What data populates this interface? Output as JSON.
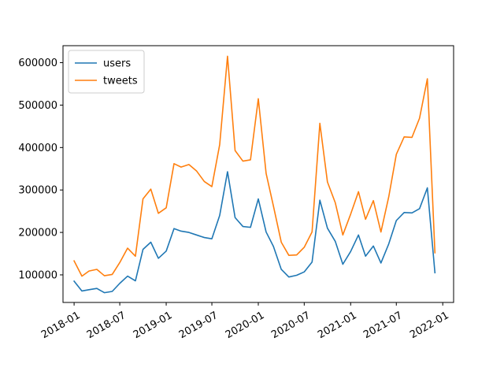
{
  "chart_data": {
    "type": "line",
    "title": "",
    "xlabel": "",
    "ylabel": "",
    "grid": false,
    "legend_position": "top-left",
    "x_dates": [
      "2018-01",
      "2018-02",
      "2018-03",
      "2018-04",
      "2018-05",
      "2018-06",
      "2018-07",
      "2018-08",
      "2018-09",
      "2018-10",
      "2018-11",
      "2018-12",
      "2019-01",
      "2019-02",
      "2019-03",
      "2019-04",
      "2019-05",
      "2019-06",
      "2019-07",
      "2019-08",
      "2019-09",
      "2019-10",
      "2019-11",
      "2019-12",
      "2020-01",
      "2020-02",
      "2020-03",
      "2020-04",
      "2020-05",
      "2020-06",
      "2020-07",
      "2020-08",
      "2020-09",
      "2020-10",
      "2020-11",
      "2020-12",
      "2021-01",
      "2021-02",
      "2021-03",
      "2021-04",
      "2021-05",
      "2021-06",
      "2021-07",
      "2021-08",
      "2021-09",
      "2021-10",
      "2021-11",
      "2021-12"
    ],
    "x_ticks": [
      "2018-01",
      "2018-07",
      "2019-01",
      "2019-07",
      "2020-01",
      "2020-07",
      "2021-01",
      "2021-07",
      "2022-01"
    ],
    "xlim": [
      "2017-11-18",
      "2022-02-13"
    ],
    "ylim": [
      35000,
      640000
    ],
    "y_ticks": [
      100000,
      200000,
      300000,
      400000,
      500000,
      600000
    ],
    "series": [
      {
        "name": "users",
        "color": "#1f77b4",
        "values": [
          85000,
          62000,
          65000,
          68000,
          58000,
          61000,
          80000,
          97000,
          86000,
          160000,
          177000,
          139000,
          156000,
          209000,
          203000,
          200000,
          194000,
          188000,
          185000,
          240000,
          343000,
          235000,
          214000,
          212000,
          279000,
          201000,
          167000,
          113000,
          95000,
          99000,
          107000,
          130000,
          276000,
          210000,
          179000,
          125000,
          155000,
          194000,
          144000,
          168000,
          128000,
          173000,
          228000,
          247000,
          246000,
          256000,
          305000,
          105000
        ]
      },
      {
        "name": "tweets",
        "color": "#ff7f0e",
        "values": [
          133000,
          97000,
          109000,
          113000,
          98000,
          101000,
          129000,
          163000,
          144000,
          279000,
          302000,
          245000,
          258000,
          362000,
          354000,
          360000,
          345000,
          320000,
          308000,
          407000,
          615000,
          393000,
          368000,
          371000,
          515000,
          339000,
          262000,
          177000,
          146000,
          147000,
          165000,
          201000,
          457000,
          319000,
          270000,
          194000,
          243000,
          296000,
          231000,
          275000,
          201000,
          284000,
          384000,
          425000,
          424000,
          469000,
          562000,
          152000
        ]
      }
    ]
  }
}
